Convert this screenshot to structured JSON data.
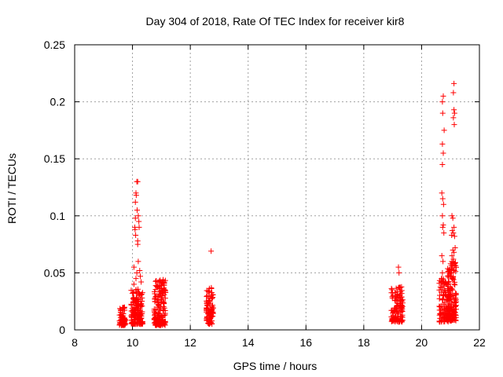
{
  "chart_data": {
    "type": "scatter",
    "title": "Day 304 of 2018, Rate Of TEC Index for receiver kir8",
    "xlabel": "GPS time / hours",
    "ylabel": "ROTI / TECUs",
    "xlim": [
      8,
      22
    ],
    "ylim": [
      0,
      0.25
    ],
    "xticks": [
      "8",
      "10",
      "12",
      "14",
      "16",
      "18",
      "20",
      "22"
    ],
    "yticks": [
      "0",
      "0.05",
      "0.1",
      "0.15",
      "0.2",
      "0.25"
    ],
    "grid": true,
    "marker": "+",
    "marker_color": "#ff0000",
    "series": [
      {
        "name": "ROTI",
        "clusters": [
          {
            "x": [
              9.55,
              9.75
            ],
            "y": [
              0.004,
              0.02
            ],
            "n": 70
          },
          {
            "x": [
              9.95,
              10.35
            ],
            "y": [
              0.005,
              0.036
            ],
            "n": 160
          },
          {
            "x": [
              10.75,
              11.15
            ],
            "y": [
              0.004,
              0.044
            ],
            "n": 190
          },
          {
            "x": [
              12.55,
              12.8
            ],
            "y": [
              0.005,
              0.038
            ],
            "n": 90
          },
          {
            "x": [
              18.95,
              19.35
            ],
            "y": [
              0.007,
              0.038
            ],
            "n": 130
          },
          {
            "x": [
              20.6,
              20.95
            ],
            "y": [
              0.007,
              0.045
            ],
            "n": 110
          },
          {
            "x": [
              20.9,
              21.2
            ],
            "y": [
              0.008,
              0.06
            ],
            "n": 140
          }
        ],
        "points": [
          [
            10.05,
            0.055
          ],
          [
            10.08,
            0.09
          ],
          [
            10.1,
            0.098
          ],
          [
            10.12,
            0.12
          ],
          [
            10.15,
            0.13
          ],
          [
            10.18,
            0.13
          ],
          [
            10.13,
            0.118
          ],
          [
            10.1,
            0.112
          ],
          [
            10.16,
            0.105
          ],
          [
            10.2,
            0.1
          ],
          [
            10.22,
            0.095
          ],
          [
            10.09,
            0.088
          ],
          [
            10.18,
            0.075
          ],
          [
            10.2,
            0.06
          ],
          [
            10.15,
            0.05
          ],
          [
            10.25,
            0.052
          ],
          [
            10.27,
            0.047
          ],
          [
            10.3,
            0.042
          ],
          [
            10.05,
            0.04
          ],
          [
            10.12,
            0.045
          ],
          [
            10.23,
            0.09
          ],
          [
            10.11,
            0.083
          ],
          [
            10.18,
            0.078
          ],
          [
            12.72,
            0.069
          ],
          [
            19.2,
            0.055
          ],
          [
            19.22,
            0.05
          ],
          [
            20.72,
            0.2
          ],
          [
            20.75,
            0.205
          ],
          [
            20.73,
            0.19
          ],
          [
            20.78,
            0.175
          ],
          [
            20.72,
            0.163
          ],
          [
            20.75,
            0.155
          ],
          [
            20.72,
            0.145
          ],
          [
            20.7,
            0.12
          ],
          [
            20.73,
            0.115
          ],
          [
            20.76,
            0.11
          ],
          [
            20.72,
            0.1
          ],
          [
            20.75,
            0.092
          ],
          [
            20.73,
            0.09
          ],
          [
            20.77,
            0.085
          ],
          [
            20.7,
            0.065
          ],
          [
            20.74,
            0.06
          ],
          [
            20.72,
            0.05
          ],
          [
            20.7,
            0.045
          ],
          [
            21.12,
            0.216
          ],
          [
            21.1,
            0.208
          ],
          [
            21.12,
            0.193
          ],
          [
            21.14,
            0.19
          ],
          [
            21.1,
            0.186
          ],
          [
            21.13,
            0.18
          ],
          [
            21.05,
            0.1
          ],
          [
            21.08,
            0.098
          ],
          [
            21.12,
            0.09
          ],
          [
            21.06,
            0.087
          ],
          [
            21.1,
            0.085
          ],
          [
            21.14,
            0.082
          ],
          [
            21.08,
            0.07
          ],
          [
            21.12,
            0.068
          ],
          [
            21.05,
            0.065
          ],
          [
            21.1,
            0.062
          ],
          [
            21.14,
            0.058
          ],
          [
            21.06,
            0.055
          ],
          [
            21.0,
            0.05
          ],
          [
            21.13,
            0.052
          ],
          [
            21.04,
            0.083
          ],
          [
            21.16,
            0.072
          ]
        ]
      }
    ]
  }
}
